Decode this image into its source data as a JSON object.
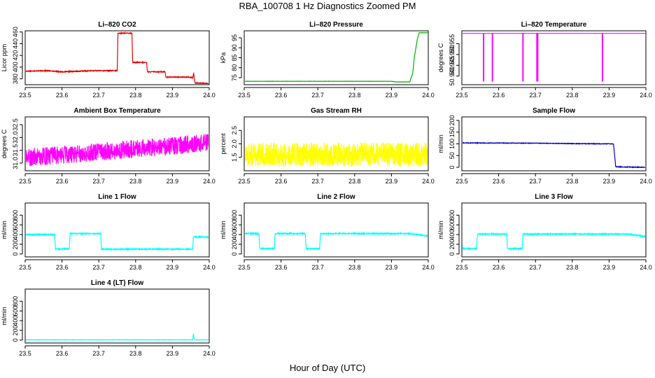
{
  "figure": {
    "title": "RBA_100708  1 Hz Diagnostics Zoomed PM",
    "xlabel": "Hour of Day (UTC)"
  },
  "chart_data": [
    {
      "type": "line",
      "title": "Li–820 CO2",
      "ylabel": "Licor ppm",
      "color": "#e00000",
      "xlim": [
        23.5,
        24.0
      ],
      "ylim": [
        370,
        462
      ],
      "yticks": [
        "380",
        "400",
        "420",
        "440",
        "460"
      ],
      "xticks": [
        "23.5",
        "23.6",
        "23.7",
        "23.8",
        "23.9",
        "24.0"
      ],
      "noise": 0.7,
      "x": [
        23.5,
        23.56,
        23.6,
        23.69,
        23.75,
        23.752,
        23.79,
        23.792,
        23.83,
        23.832,
        23.88,
        23.882,
        23.94,
        23.955,
        23.958,
        23.96,
        23.962,
        24.0
      ],
      "y": [
        393,
        394,
        392,
        394,
        394,
        458,
        458,
        408,
        408,
        392,
        392,
        383,
        383,
        382,
        390,
        377,
        373,
        372
      ]
    },
    {
      "type": "line",
      "title": "Li–820 Pressure",
      "ylabel": "kPa",
      "color": "#00b000",
      "xlim": [
        23.5,
        24.0
      ],
      "ylim": [
        71.5,
        98.5
      ],
      "yticks": [
        "75",
        "80",
        "85",
        "90",
        "95"
      ],
      "xticks": [
        "23.5",
        "23.6",
        "23.7",
        "23.8",
        "23.9",
        "24.0"
      ],
      "noise": 0.05,
      "x": [
        23.5,
        23.9,
        23.91,
        23.95,
        23.958,
        23.962,
        23.97,
        23.975,
        24.0
      ],
      "y": [
        73.2,
        73.2,
        72.9,
        72.9,
        77.5,
        85.0,
        94.0,
        97.5,
        97.5
      ]
    },
    {
      "type": "line",
      "title": "Li–820 Temperature",
      "ylabel": "degrees C",
      "color": "#ff00ff",
      "xlim": [
        23.5,
        24.0
      ],
      "ylim": [
        50.936,
        50.961
      ],
      "yticks": [
        "50.940",
        "50.945",
        "50.950",
        "50.955"
      ],
      "xticks": [
        "23.5",
        "23.6",
        "23.7",
        "23.8",
        "23.9",
        "24.0"
      ],
      "baseline": 50.9598,
      "spikes": [
        {
          "x": 23.559,
          "y": 50.9375
        },
        {
          "x": 23.583,
          "y": 50.9375
        },
        {
          "x": 23.666,
          "y": 50.9375
        },
        {
          "x": 23.704,
          "y": 50.9375
        },
        {
          "x": 23.706,
          "y": 50.9375
        },
        {
          "x": 23.882,
          "y": 50.9375
        }
      ]
    },
    {
      "type": "line",
      "title": "Ambient Box Temperature",
      "ylabel": "degrees C",
      "color": "#ff00ff",
      "xlim": [
        23.5,
        24.0
      ],
      "ylim": [
        30.7,
        32.8
      ],
      "yticks": [
        "31.0",
        "31.5",
        "32.0",
        "32.5"
      ],
      "xticks": [
        "23.5",
        "23.6",
        "23.7",
        "23.8",
        "23.9",
        "24.0"
      ],
      "noise": 0.35,
      "x": [
        23.5,
        24.0
      ],
      "y": [
        31.2,
        31.8
      ]
    },
    {
      "type": "line",
      "title": "Gas Stream RH",
      "ylabel": "percent",
      "color": "#ffff00",
      "xlim": [
        23.5,
        24.0
      ],
      "ylim": [
        1.0,
        3.0
      ],
      "yticks": [
        "1.5",
        "2.0",
        "2.5"
      ],
      "xticks": [
        "23.5",
        "23.6",
        "23.7",
        "23.8",
        "23.9",
        "24.0"
      ],
      "noise": 0.45,
      "x": [
        23.5,
        24.0
      ],
      "y": [
        1.6,
        1.6
      ]
    },
    {
      "type": "line",
      "title": "Sample Flow",
      "ylabel": "ml/min",
      "color": "#0000c0",
      "xlim": [
        23.5,
        24.0
      ],
      "ylim": [
        -15,
        215
      ],
      "yticks": [
        "0",
        "50",
        "100",
        "150",
        "200"
      ],
      "xticks": [
        "23.5",
        "23.6",
        "23.7",
        "23.8",
        "23.9",
        "24.0"
      ],
      "noise": 1.2,
      "x": [
        23.5,
        23.7,
        23.8,
        23.9,
        23.912,
        23.918,
        24.0
      ],
      "y": [
        104,
        103,
        101,
        100,
        100,
        2,
        0
      ]
    },
    {
      "type": "line",
      "title": "Line 1 Flow",
      "ylabel": "ml/min",
      "color": "#00ffff",
      "xlim": [
        23.5,
        24.0
      ],
      "ylim": [
        -60,
        1050
      ],
      "yticks": [
        "0",
        "200",
        "400",
        "600",
        "800"
      ],
      "xticks": [
        "23.5",
        "23.6",
        "23.7",
        "23.8",
        "23.9",
        "24.0"
      ],
      "noise": 12,
      "x": [
        23.5,
        23.58,
        23.582,
        23.62,
        23.622,
        23.705,
        23.707,
        23.955,
        23.957,
        24.0
      ],
      "y": [
        400,
        400,
        105,
        105,
        420,
        420,
        100,
        100,
        350,
        350
      ]
    },
    {
      "type": "line",
      "title": "Line 2 Flow",
      "ylabel": "ml/min",
      "color": "#00ffff",
      "xlim": [
        23.5,
        24.0
      ],
      "ylim": [
        -60,
        1050
      ],
      "yticks": [
        "0",
        "200",
        "400",
        "600",
        "800"
      ],
      "xticks": [
        "23.5",
        "23.6",
        "23.7",
        "23.8",
        "23.9",
        "24.0"
      ],
      "noise": 12,
      "x": [
        23.5,
        23.54,
        23.542,
        23.582,
        23.584,
        23.666,
        23.668,
        23.705,
        23.707,
        23.95,
        24.0
      ],
      "y": [
        420,
        420,
        110,
        110,
        420,
        420,
        110,
        110,
        420,
        420,
        370
      ]
    },
    {
      "type": "line",
      "title": "Line 3 Flow",
      "ylabel": "ml/min",
      "color": "#00ffff",
      "xlim": [
        23.5,
        24.0
      ],
      "ylim": [
        -60,
        1050
      ],
      "yticks": [
        "0",
        "200",
        "400",
        "600",
        "800"
      ],
      "xticks": [
        "23.5",
        "23.6",
        "23.7",
        "23.8",
        "23.9",
        "24.0"
      ],
      "noise": 12,
      "x": [
        23.5,
        23.502,
        23.54,
        23.542,
        23.622,
        23.624,
        23.664,
        23.666,
        23.95,
        24.0
      ],
      "y": [
        350,
        110,
        110,
        410,
        410,
        110,
        110,
        410,
        410,
        360
      ]
    },
    {
      "type": "line",
      "title": "Line 4 (LT) Flow",
      "ylabel": "ml/min",
      "color": "#00ffff",
      "xlim": [
        23.5,
        24.0
      ],
      "ylim": [
        -60,
        1050
      ],
      "yticks": [
        "0",
        "200",
        "400",
        "600",
        "800"
      ],
      "xticks": [
        "23.5",
        "23.6",
        "23.7",
        "23.8",
        "23.9",
        "24.0"
      ],
      "noise": 3,
      "x": [
        23.5,
        23.955,
        23.957,
        23.959,
        23.962,
        24.0
      ],
      "y": [
        5,
        5,
        130,
        20,
        5,
        5
      ]
    }
  ]
}
